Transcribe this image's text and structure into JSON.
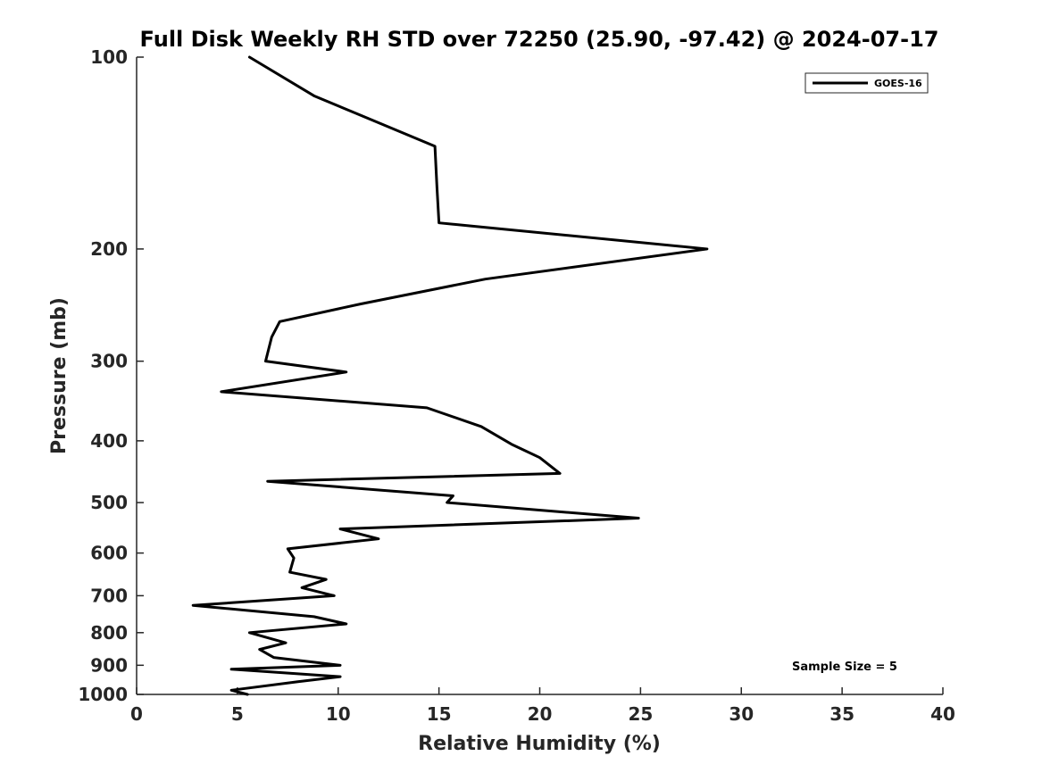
{
  "chart_data": {
    "type": "line",
    "title": "Full Disk Weekly RH STD over 72250 (25.90, -97.42) @ 2024-07-17",
    "xlabel": "Relative Humidity (%)",
    "ylabel": "Pressure (mb)",
    "xlim": [
      0,
      40
    ],
    "ylim": [
      100,
      1000
    ],
    "yscale": "log",
    "y_reversed": true,
    "xticks": [
      0,
      5,
      10,
      15,
      20,
      25,
      30,
      35,
      40
    ],
    "xtick_labels": [
      "0",
      "5",
      "10",
      "15",
      "20",
      "25",
      "30",
      "35",
      "40"
    ],
    "yticks": [
      100,
      200,
      300,
      400,
      500,
      600,
      700,
      800,
      900,
      1000
    ],
    "ytick_labels": [
      "100",
      "200",
      "300",
      "400",
      "500",
      "600",
      "700",
      "800",
      "900",
      "1000"
    ],
    "grid": false,
    "legend_position": "top-right",
    "annotation": "Sample Size = 5",
    "series": [
      {
        "name": "GOES-16",
        "color": "#000000",
        "x": [
          5.6,
          8.8,
          14.8,
          14.9,
          15.0,
          28.3,
          17.3,
          11.1,
          7.1,
          6.7,
          6.4,
          10.4,
          4.2,
          14.4,
          17.1,
          18.6,
          20.0,
          21.0,
          6.5,
          15.7,
          15.4,
          24.9,
          10.1,
          12.0,
          7.5,
          7.8,
          7.6,
          9.4,
          8.2,
          9.8,
          2.8,
          8.8,
          10.4,
          5.6,
          7.4,
          6.1,
          6.8,
          10.1,
          4.7,
          10.1,
          8.0,
          4.7,
          5.5
        ],
        "y": [
          100,
          115,
          138,
          160,
          182,
          200,
          223,
          244,
          260,
          275,
          300,
          312,
          335,
          355,
          380,
          405,
          425,
          450,
          463,
          488,
          500,
          529,
          550,
          570,
          591,
          611,
          643,
          660,
          680,
          700,
          725,
          755,
          775,
          800,
          830,
          850,
          875,
          900,
          913,
          938,
          955,
          985,
          1000
        ]
      }
    ]
  }
}
